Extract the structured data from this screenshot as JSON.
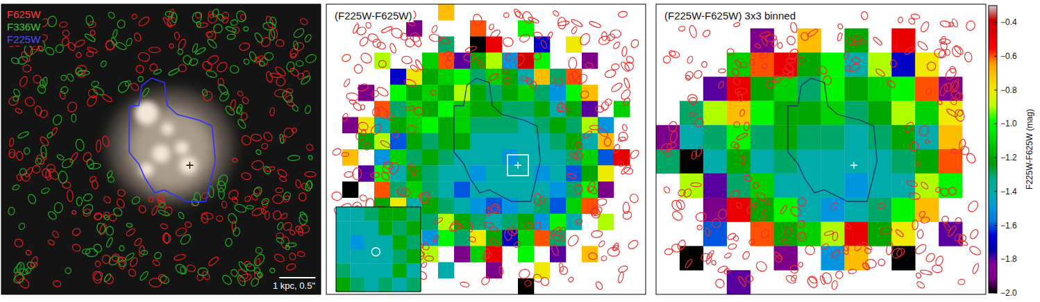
{
  "chart_data": [
    {
      "type": "image",
      "labels": [
        "F625W",
        "F336W",
        "F225W"
      ],
      "colors": [
        "#ff3b3b",
        "#3fc43f",
        "#4b4bff"
      ],
      "scale_bar": "1 kpc, 0.5\""
    },
    {
      "type": "heatmap",
      "title": "(F225W-F625W)",
      "cells": [
        [
          null,
          null,
          null,
          null,
          null,
          null,
          null,
          -0.7,
          null,
          null,
          null,
          null,
          null,
          null,
          null,
          null,
          null,
          null,
          null,
          null
        ],
        [
          null,
          null,
          null,
          null,
          null,
          -1.9,
          null,
          null,
          null,
          -0.6,
          null,
          null,
          -1.0,
          null,
          null,
          null,
          null,
          null,
          null,
          null
        ],
        [
          null,
          null,
          null,
          null,
          null,
          null,
          null,
          -1.3,
          null,
          -2.0,
          -0.5,
          null,
          null,
          -1.7,
          null,
          -0.8,
          null,
          null,
          null,
          null
        ],
        [
          null,
          null,
          null,
          -0.9,
          null,
          null,
          -1.1,
          -0.6,
          -1.8,
          -1.2,
          -0.9,
          -1.5,
          -0.4,
          -1.0,
          null,
          null,
          -1.9,
          null,
          null,
          null
        ],
        [
          null,
          null,
          null,
          null,
          -1.7,
          -0.8,
          -1.2,
          -1.1,
          -1.0,
          -1.3,
          -1.1,
          -1.2,
          -1.4,
          -0.7,
          -1.3,
          -0.6,
          null,
          null,
          null,
          null
        ],
        [
          null,
          null,
          -1.9,
          null,
          -1.0,
          -1.2,
          -1.1,
          -1.2,
          -0.9,
          -1.2,
          -1.3,
          -1.2,
          -1.1,
          -1.3,
          -1.5,
          -1.0,
          -0.7,
          null,
          null,
          null
        ],
        [
          null,
          null,
          null,
          -0.6,
          -1.3,
          -1.1,
          -1.2,
          -1.0,
          -1.1,
          -1.2,
          -1.2,
          -1.3,
          -1.3,
          -1.2,
          -1.4,
          -1.2,
          -1.8,
          null,
          -1.1,
          null
        ],
        [
          null,
          -1.9,
          -0.8,
          -1.4,
          -1.2,
          -1.1,
          -1.0,
          -1.2,
          -1.1,
          -1.3,
          -1.3,
          -1.3,
          -1.4,
          -1.3,
          -1.2,
          -1.3,
          -0.9,
          -1.5,
          null,
          null
        ],
        [
          null,
          null,
          -1.2,
          -0.9,
          -1.6,
          -1.2,
          -1.3,
          -1.2,
          -1.2,
          -1.4,
          -1.4,
          -1.4,
          -1.4,
          -1.4,
          -1.3,
          -1.2,
          -1.4,
          -0.7,
          null,
          null
        ],
        [
          null,
          -0.7,
          null,
          -1.5,
          -1.1,
          -1.3,
          -1.2,
          -1.3,
          -1.4,
          -1.4,
          -1.4,
          -1.5,
          -1.4,
          -1.4,
          -1.4,
          -1.3,
          -1.1,
          -1.6,
          -0.5,
          null
        ],
        [
          null,
          null,
          -1.8,
          -1.0,
          -1.4,
          -1.2,
          -1.3,
          -1.4,
          -1.4,
          -1.5,
          -1.4,
          -1.4,
          -1.4,
          -1.5,
          -1.4,
          -1.6,
          -1.2,
          -0.8,
          null,
          null
        ],
        [
          null,
          -2.0,
          null,
          -0.6,
          -1.3,
          -1.1,
          -1.3,
          -1.4,
          -1.6,
          -1.4,
          -1.4,
          -1.4,
          -1.4,
          -1.4,
          -1.5,
          -1.3,
          -1.0,
          -1.9,
          null,
          null
        ],
        [
          null,
          null,
          null,
          -1.2,
          -0.8,
          -1.4,
          -1.2,
          -1.3,
          -1.4,
          -1.5,
          -1.6,
          -1.5,
          -1.4,
          -1.3,
          -1.6,
          -1.1,
          -0.6,
          null,
          null,
          null
        ],
        [
          null,
          null,
          null,
          null,
          -1.7,
          -1.1,
          -1.3,
          -0.9,
          -1.2,
          -1.3,
          -1.4,
          -1.3,
          -1.2,
          -1.5,
          -1.0,
          -1.4,
          null,
          -0.9,
          null,
          null
        ],
        [
          null,
          null,
          -0.5,
          null,
          null,
          -0.7,
          -1.5,
          -1.0,
          -1.3,
          -0.8,
          -1.2,
          -1.7,
          -1.1,
          -0.6,
          -1.3,
          null,
          null,
          null,
          null,
          null
        ],
        [
          null,
          null,
          null,
          null,
          -2.0,
          null,
          -0.9,
          null,
          -1.9,
          -1.1,
          -0.5,
          null,
          -1.0,
          null,
          -1.8,
          null,
          -0.7,
          null,
          null,
          null
        ],
        [
          null,
          null,
          null,
          null,
          null,
          null,
          null,
          -1.4,
          null,
          null,
          -1.9,
          null,
          null,
          -0.8,
          null,
          null,
          null,
          null,
          null,
          null
        ],
        [
          null,
          null,
          null,
          null,
          null,
          null,
          null,
          null,
          null,
          null,
          null,
          null,
          -2.0,
          null,
          null,
          null,
          null,
          null,
          null,
          null
        ]
      ],
      "inset_cells": [
        [
          -1.4,
          -1.4,
          -1.3,
          -1.2,
          -1.2,
          -1.3
        ],
        [
          -1.4,
          -1.4,
          -1.4,
          -1.2,
          -1.3,
          -1.2
        ],
        [
          -1.4,
          -1.5,
          -1.4,
          -1.4,
          -1.2,
          -1.3
        ],
        [
          -1.4,
          -1.4,
          -1.4,
          -1.4,
          -1.3,
          -1.2
        ],
        [
          -1.3,
          -1.4,
          -1.4,
          -1.4,
          -1.2,
          -1.4
        ],
        [
          -1.2,
          -1.3,
          -1.4,
          -1.3,
          -1.4,
          -1.3
        ]
      ]
    },
    {
      "type": "heatmap",
      "title": "(F225W-F625W) 3x3 binned",
      "cells": [
        [
          null,
          null,
          null,
          null,
          null,
          null,
          null,
          null,
          null,
          null,
          null,
          null,
          null,
          null
        ],
        [
          null,
          null,
          null,
          null,
          -1.9,
          null,
          -0.7,
          null,
          -1.2,
          null,
          -0.5,
          null,
          null,
          null
        ],
        [
          null,
          null,
          null,
          -1.1,
          -0.6,
          -0.5,
          -1.2,
          -1.0,
          -1.4,
          -0.9,
          -1.7,
          -0.8,
          null,
          null
        ],
        [
          null,
          null,
          -1.8,
          -0.5,
          -1.2,
          -1.1,
          -1.3,
          -1.0,
          -1.2,
          -1.1,
          -1.0,
          -0.6,
          -1.9,
          null
        ],
        [
          null,
          -1.3,
          -0.9,
          -0.7,
          -1.0,
          -1.2,
          -1.2,
          -1.1,
          -1.3,
          -1.2,
          -0.9,
          -1.1,
          -0.8,
          null
        ],
        [
          -1.9,
          -1.4,
          -1.3,
          -1.0,
          -1.3,
          -1.2,
          -1.3,
          -1.3,
          -1.4,
          -1.3,
          -1.2,
          -1.4,
          -0.7,
          null
        ],
        [
          -1.3,
          -2.0,
          -1.4,
          -1.2,
          -1.4,
          -1.3,
          -1.4,
          -1.4,
          -1.4,
          -1.4,
          -1.3,
          -1.2,
          -0.6,
          null
        ],
        [
          null,
          -0.9,
          -1.8,
          -1.3,
          -1.1,
          -1.4,
          -1.4,
          -1.4,
          -1.5,
          -1.4,
          -1.4,
          -0.9,
          -1.0,
          null
        ],
        [
          null,
          null,
          -1.9,
          -0.5,
          -1.2,
          -1.0,
          -1.4,
          -1.5,
          -1.4,
          -1.3,
          -1.0,
          -0.7,
          null,
          null
        ],
        [
          null,
          null,
          -1.6,
          null,
          -0.6,
          -1.2,
          -1.1,
          -0.9,
          -0.5,
          -1.2,
          -0.8,
          null,
          -1.8,
          null
        ],
        [
          null,
          -2.0,
          null,
          null,
          null,
          -1.9,
          null,
          -1.5,
          -0.7,
          null,
          -2.0,
          null,
          null,
          null
        ],
        [
          null,
          null,
          null,
          -1.8,
          null,
          null,
          null,
          null,
          null,
          null,
          null,
          null,
          null,
          null
        ]
      ],
      "colorbar_label": "F225W-F625W (mag)",
      "colorbar_lim": [
        -2.0,
        -0.3
      ],
      "colorbar_ticks": [
        {
          "value": -0.4,
          "label": "−0.4"
        },
        {
          "value": -0.6,
          "label": "−0.6"
        },
        {
          "value": -0.8,
          "label": "−0.8"
        },
        {
          "value": -1.0,
          "label": "−1.0"
        },
        {
          "value": -1.2,
          "label": "−1.2"
        },
        {
          "value": -1.4,
          "label": "−1.4"
        },
        {
          "value": -1.6,
          "label": "−1.6"
        },
        {
          "value": -1.8,
          "label": "−1.8"
        },
        {
          "value": -2.0,
          "label": "−2.0"
        }
      ]
    }
  ]
}
